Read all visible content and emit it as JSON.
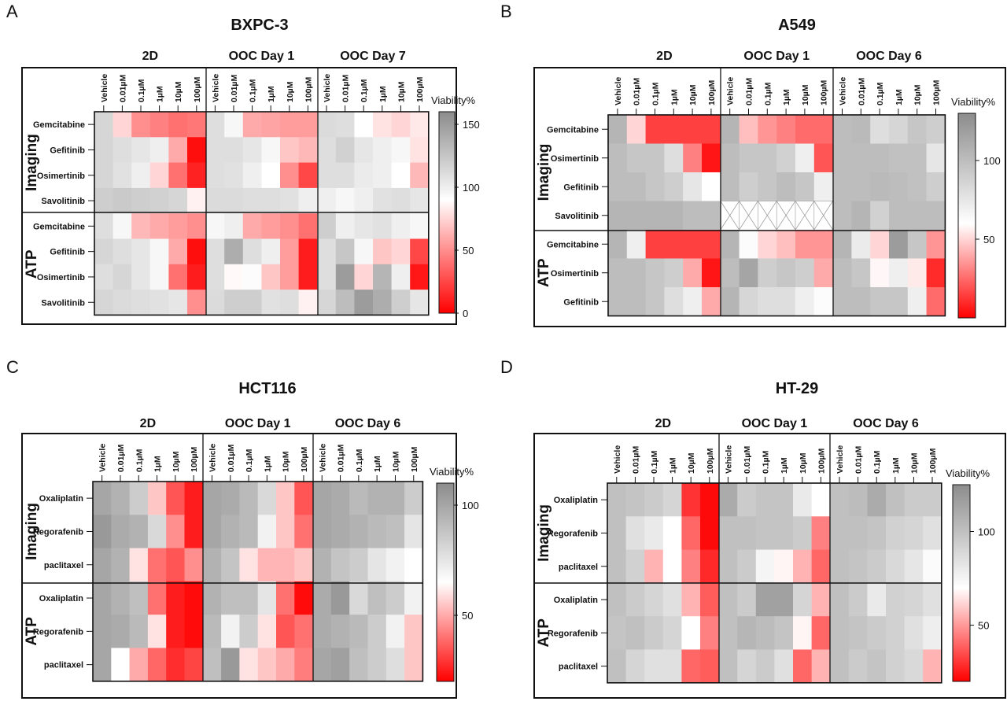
{
  "figure_title": "Drug response heatmaps across 2D and OOC cultures",
  "colors": {
    "low": "#ff0000",
    "mid": "#ffffff",
    "high": "#8c8c8c"
  },
  "chart_data": [
    {
      "type": "heatmap",
      "panel_label": "A",
      "title": "BXPC-3",
      "groups": [
        "2D",
        "OOC Day 1",
        "OOC Day 7"
      ],
      "concentrations": [
        "Vehicle",
        "0.01µM",
        "0.1µM",
        "1µM",
        "10µM",
        "100µM"
      ],
      "blocks": [
        {
          "name": "Imaging",
          "rows": [
            "Gemcitabine",
            "Gefitinib",
            "Osimertinib",
            "Savolitinib"
          ]
        },
        {
          "name": "ATP",
          "rows": [
            "Gemcitabine",
            "Gefitinib",
            "Osimertinib",
            "Savolitinib"
          ]
        }
      ],
      "colorbar": {
        "label": "Viability%",
        "min": 0,
        "max": 160,
        "mid": 90,
        "ticks": [
          0,
          50,
          100,
          150
        ]
      },
      "values": [
        [
          115,
          75,
          50,
          45,
          40,
          42,
          110,
          95,
          60,
          58,
          55,
          55,
          112,
          110,
          90,
          80,
          75,
          82
        ],
        [
          115,
          110,
          105,
          100,
          60,
          5,
          110,
          110,
          105,
          95,
          70,
          65,
          110,
          118,
          105,
          100,
          95,
          80
        ],
        [
          115,
          108,
          100,
          75,
          40,
          12,
          110,
          108,
          100,
          90,
          50,
          25,
          110,
          110,
          102,
          100,
          90,
          65
        ],
        [
          120,
          122,
          120,
          118,
          115,
          85,
          112,
          112,
          110,
          110,
          108,
          100,
          100,
          95,
          100,
          108,
          110,
          105
        ]
      ],
      "values_atp": [
        [
          110,
          95,
          65,
          60,
          55,
          50,
          95,
          100,
          60,
          55,
          50,
          40,
          120,
          100,
          105,
          108,
          100,
          95
        ],
        [
          115,
          110,
          105,
          95,
          60,
          5,
          110,
          140,
          110,
          100,
          55,
          10,
          110,
          125,
          95,
          70,
          75,
          25
        ],
        [
          110,
          115,
          105,
          95,
          40,
          10,
          110,
          88,
          92,
          70,
          55,
          10,
          110,
          150,
          75,
          135,
          100,
          8
        ],
        [
          115,
          112,
          110,
          108,
          105,
          50,
          112,
          120,
          120,
          108,
          110,
          85,
          115,
          130,
          150,
          140,
          120,
          105
        ]
      ]
    },
    {
      "type": "heatmap",
      "panel_label": "B",
      "title": "A549",
      "groups": [
        "2D",
        "OOC Day 1",
        "OOC Day 6"
      ],
      "concentrations": [
        "Vehicle",
        "0.01µM",
        "0.1µM",
        "1µM",
        "10µM",
        "100µM"
      ],
      "blocks": [
        {
          "name": "Imaging",
          "rows": [
            "Gemcitabine",
            "Osimertinib",
            "Gefitinib",
            "Savolitinib"
          ]
        },
        {
          "name": "ATP",
          "rows": [
            "Gemcitabine",
            "Osimertinib",
            "Gefitinib"
          ]
        }
      ],
      "colorbar": {
        "label": "Viability%",
        "min": 0,
        "max": 130,
        "mid": 60,
        "ticks": [
          50,
          100
        ]
      },
      "values": [
        [
          105,
          50,
          15,
          15,
          15,
          15,
          105,
          45,
          35,
          30,
          25,
          25,
          100,
          102,
          80,
          85,
          95,
          90
        ],
        [
          100,
          95,
          95,
          80,
          30,
          5,
          100,
          95,
          95,
          88,
          70,
          20,
          100,
          100,
          100,
          98,
          98,
          75
        ],
        [
          100,
          100,
          95,
          90,
          75,
          60,
          100,
          90,
          95,
          100,
          95,
          70,
          100,
          100,
          102,
          100,
          98,
          90
        ],
        [
          105,
          105,
          105,
          105,
          100,
          100,
          null,
          null,
          null,
          null,
          null,
          null,
          100,
          105,
          88,
          100,
          100,
          100
        ]
      ],
      "values_atp": [
        [
          105,
          70,
          15,
          15,
          15,
          15,
          105,
          62,
          50,
          45,
          35,
          35,
          105,
          72,
          50,
          120,
          95,
          35
        ],
        [
          100,
          100,
          95,
          90,
          40,
          5,
          100,
          115,
          90,
          95,
          90,
          40,
          100,
          95,
          58,
          70,
          55,
          10
        ],
        [
          100,
          100,
          95,
          80,
          70,
          40,
          105,
          85,
          80,
          80,
          70,
          62,
          100,
          100,
          95,
          95,
          70,
          25
        ]
      ]
    },
    {
      "type": "heatmap",
      "panel_label": "C",
      "title": "HCT116",
      "groups": [
        "2D",
        "OOC Day 1",
        "OOC Day 6"
      ],
      "concentrations": [
        "Vehicle",
        "0.01µM",
        "0.1µM",
        "1µM",
        "10µM",
        "100µM"
      ],
      "blocks": [
        {
          "name": "Imaging",
          "rows": [
            "Oxaliplatin",
            "Regorafenib",
            "paclitaxel"
          ]
        },
        {
          "name": "ATP",
          "rows": [
            "Oxaliplatin",
            "Regorafenib",
            "paclitaxel"
          ]
        }
      ],
      "colorbar": {
        "label": "Viability%",
        "min": 20,
        "max": 110,
        "mid": 65,
        "ticks": [
          50,
          100
        ]
      },
      "values": [
        [
          100,
          95,
          85,
          55,
          35,
          25,
          100,
          98,
          92,
          80,
          55,
          35,
          100,
          98,
          92,
          95,
          95,
          85
        ],
        [
          105,
          98,
          95,
          80,
          45,
          25,
          100,
          95,
          92,
          70,
          55,
          40,
          100,
          98,
          95,
          92,
          90,
          75
        ],
        [
          100,
          95,
          60,
          40,
          35,
          45,
          95,
          88,
          60,
          52,
          52,
          55,
          95,
          88,
          85,
          75,
          70,
          65
        ]
      ],
      "values_atp": [
        [
          100,
          95,
          90,
          40,
          25,
          22,
          95,
          90,
          90,
          75,
          40,
          22,
          98,
          105,
          80,
          90,
          85,
          70
        ],
        [
          100,
          98,
          92,
          60,
          25,
          22,
          92,
          70,
          85,
          60,
          35,
          40,
          98,
          95,
          92,
          85,
          70,
          55
        ],
        [
          100,
          65,
          50,
          38,
          28,
          32,
          90,
          105,
          60,
          55,
          50,
          42,
          100,
          102,
          90,
          85,
          78,
          55
        ]
      ]
    },
    {
      "type": "heatmap",
      "panel_label": "D",
      "title": "HT-29",
      "groups": [
        "2D",
        "OOC Day 1",
        "OOC Day 6"
      ],
      "concentrations": [
        "Vehicle",
        "0.01µM",
        "0.1µM",
        "1µM",
        "10µM",
        "100µM"
      ],
      "blocks": [
        {
          "name": "Imaging",
          "rows": [
            "Oxaliplatin",
            "Regorafenib",
            "paclitaxel"
          ]
        },
        {
          "name": "ATP",
          "rows": [
            "Oxaliplatin",
            "Regorafenib",
            "paclitaxel"
          ]
        }
      ],
      "colorbar": {
        "label": "Viability%",
        "min": 20,
        "max": 125,
        "mid": 70,
        "ticks": [
          50,
          100
        ]
      },
      "values": [
        [
          100,
          98,
          95,
          90,
          30,
          22,
          110,
          95,
          98,
          98,
          80,
          70,
          100,
          102,
          110,
          100,
          95,
          95
        ],
        [
          100,
          85,
          80,
          70,
          40,
          22,
          100,
          100,
          98,
          98,
          95,
          45,
          100,
          100,
          98,
          92,
          90,
          85
        ],
        [
          100,
          92,
          55,
          70,
          45,
          28,
          100,
          95,
          75,
          68,
          55,
          40,
          100,
          98,
          95,
          88,
          82,
          72
        ]
      ],
      "values_atp": [
        [
          100,
          95,
          90,
          85,
          55,
          38,
          100,
          95,
          115,
          115,
          90,
          55,
          100,
          95,
          80,
          92,
          90,
          85
        ],
        [
          98,
          100,
          95,
          90,
          70,
          45,
          100,
          105,
          102,
          98,
          68,
          40,
          100,
          98,
          95,
          92,
          85,
          78
        ],
        [
          100,
          90,
          85,
          85,
          40,
          38,
          100,
          90,
          95,
          85,
          40,
          55,
          100,
          95,
          98,
          92,
          88,
          55
        ]
      ]
    }
  ]
}
